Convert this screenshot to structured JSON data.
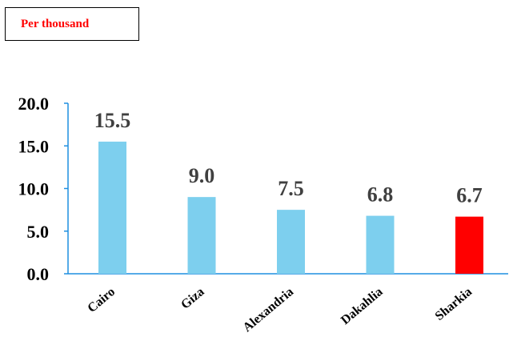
{
  "unit_label": "Per thousand",
  "colors": {
    "bar": "#7dcfee",
    "highlight": "#ff0000",
    "axis": "#1f8fe0"
  },
  "chart_data": {
    "type": "bar",
    "categories": [
      "Cairo",
      "Giza",
      "Alexandria",
      "Dakahlia",
      "Sharkia"
    ],
    "values": [
      15.5,
      9.0,
      7.5,
      6.8,
      6.7
    ],
    "data_labels": [
      "15.5",
      "9.0",
      "7.5",
      "6.8",
      "6.7"
    ],
    "highlight_category": "Sharkia",
    "ylim": [
      0,
      20
    ],
    "yticks": [
      "0.0",
      "5.0",
      "10.0",
      "15.0",
      "20.0"
    ],
    "grid": false,
    "xlabel": "",
    "ylabel": ""
  }
}
